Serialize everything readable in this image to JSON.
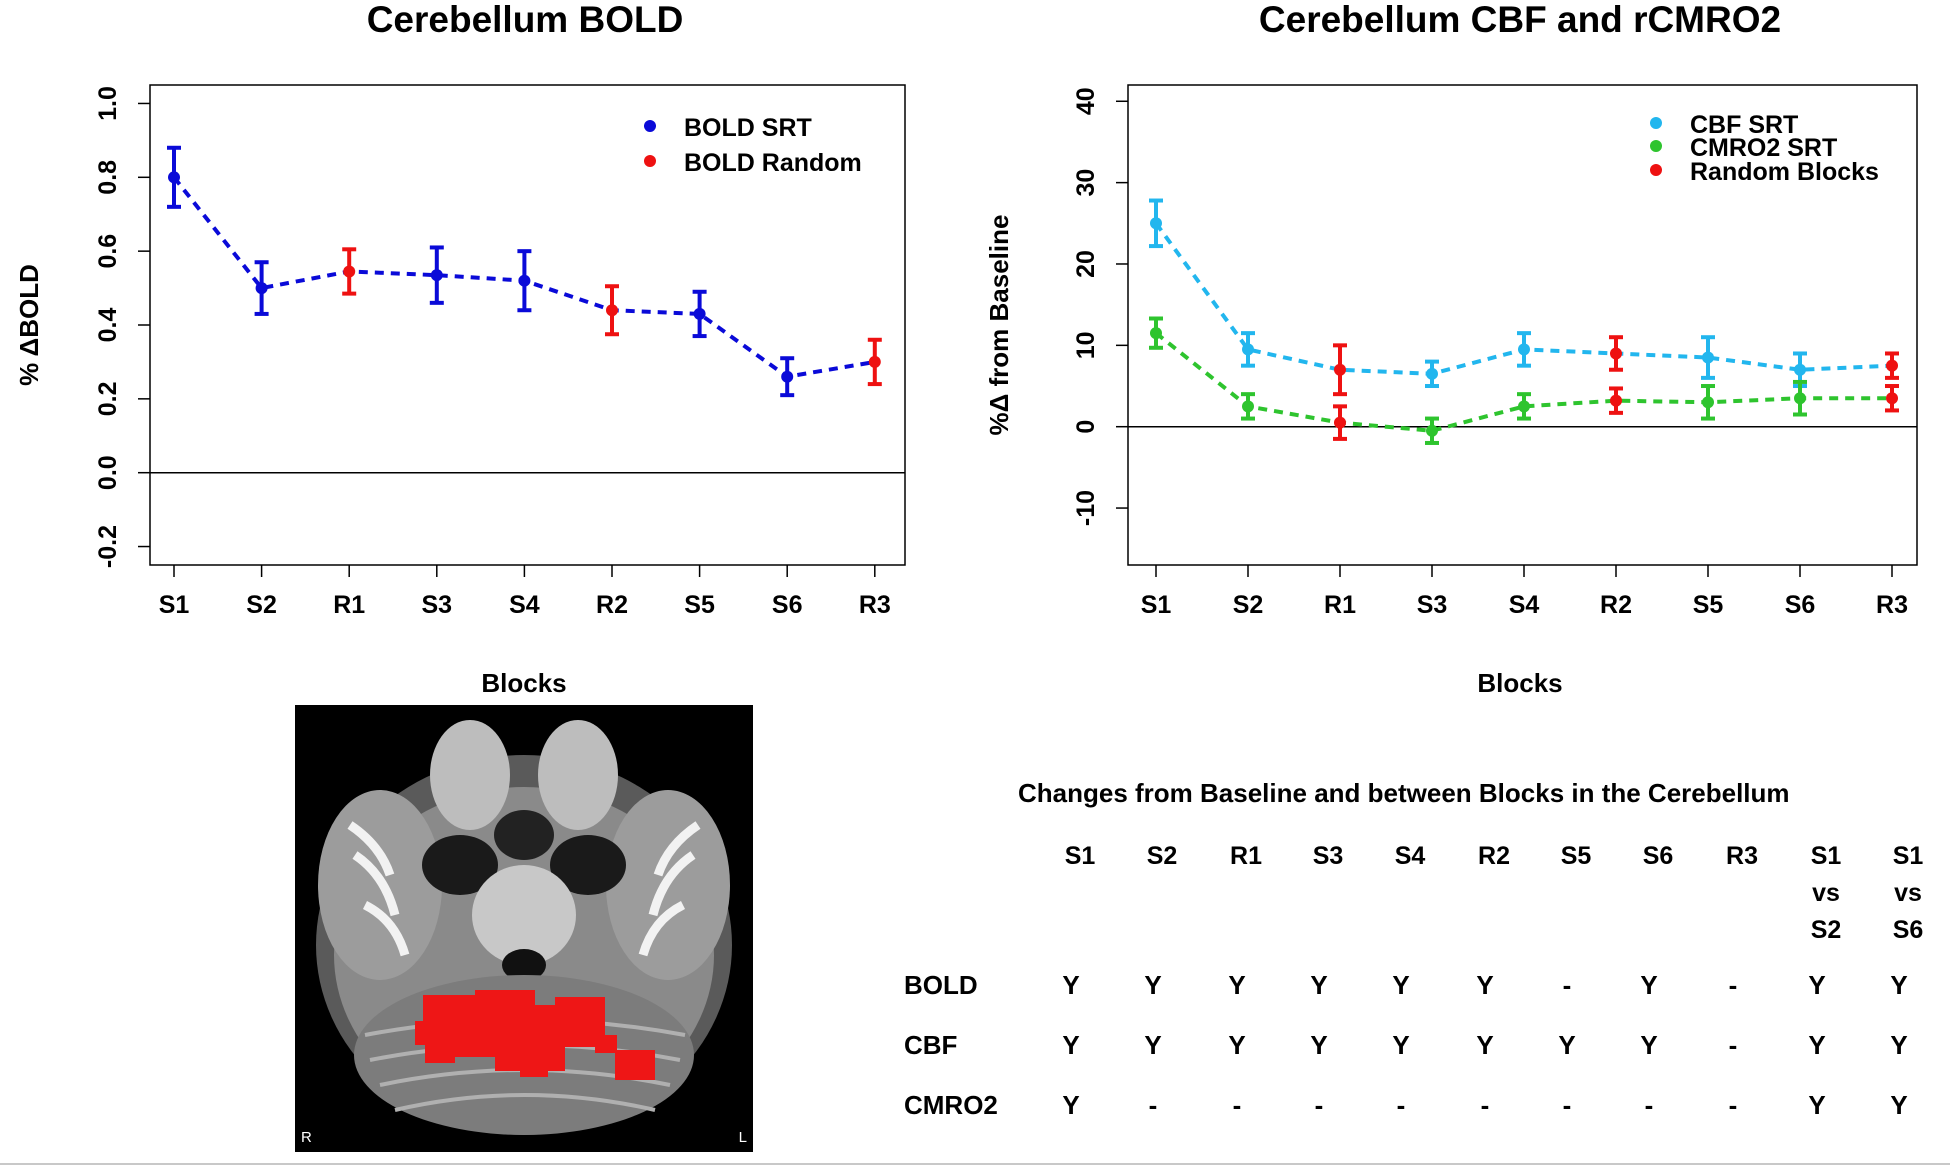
{
  "chart_data": [
    {
      "type": "line",
      "title": "Cerebellum BOLD",
      "xlabel": "Blocks",
      "ylabel": "%  ΔBOLD",
      "categories": [
        "S1",
        "S2",
        "R1",
        "S3",
        "S4",
        "R2",
        "S5",
        "S6",
        "R3"
      ],
      "ylim": [
        -0.25,
        1.05
      ],
      "yticks": [
        "-0.2",
        "0.0",
        "0.2",
        "0.4",
        "0.6",
        "0.8",
        "1.0"
      ],
      "legend": {
        "position": "top-right",
        "entries": [
          {
            "name": "BOLD SRT",
            "color": "#0a0ad8"
          },
          {
            "name": "BOLD Random",
            "color": "#ee1111"
          }
        ]
      },
      "series": [
        {
          "name": "BOLD SRT / BOLD Random",
          "values": [
            0.8,
            0.5,
            0.545,
            0.535,
            0.52,
            0.44,
            0.43,
            0.26,
            0.3
          ],
          "errors": [
            0.08,
            0.07,
            0.06,
            0.075,
            0.08,
            0.065,
            0.06,
            0.05,
            0.06
          ],
          "colors": [
            "#0a0ad8",
            "#0a0ad8",
            "#ee1111",
            "#0a0ad8",
            "#0a0ad8",
            "#ee1111",
            "#0a0ad8",
            "#0a0ad8",
            "#ee1111"
          ],
          "line_color": "#0a0ad8"
        }
      ]
    },
    {
      "type": "line",
      "title": "Cerebellum CBF and rCMRO2",
      "xlabel": "Blocks",
      "ylabel": "%Δ from Baseline",
      "categories": [
        "S1",
        "S2",
        "R1",
        "S3",
        "S4",
        "R2",
        "S5",
        "S6",
        "R3"
      ],
      "ylim": [
        -17,
        42
      ],
      "yticks": [
        "-10",
        "0",
        "10",
        "20",
        "30",
        "40"
      ],
      "legend": {
        "position": "top-right",
        "entries": [
          {
            "name": "CBF SRT",
            "color": "#22b6ee"
          },
          {
            "name": "CMRO2 SRT",
            "color": "#2ec42e"
          },
          {
            "name": "Random Blocks",
            "color": "#ee1111"
          }
        ]
      },
      "series": [
        {
          "name": "CBF",
          "values": [
            25,
            9.5,
            7,
            6.5,
            9.5,
            9,
            8.5,
            7,
            7.5
          ],
          "errors": [
            2.8,
            2.0,
            3.0,
            1.5,
            2.0,
            2.0,
            2.5,
            2.0,
            1.5
          ],
          "colors": [
            "#22b6ee",
            "#22b6ee",
            "#ee1111",
            "#22b6ee",
            "#22b6ee",
            "#ee1111",
            "#22b6ee",
            "#22b6ee",
            "#ee1111"
          ],
          "line_color": "#22b6ee"
        },
        {
          "name": "CMRO2",
          "values": [
            11.5,
            2.5,
            0.5,
            -0.5,
            2.5,
            3.2,
            3,
            3.5,
            3.5
          ],
          "errors": [
            1.8,
            1.5,
            2.0,
            1.5,
            1.5,
            1.5,
            2.0,
            2.0,
            1.5
          ],
          "colors": [
            "#2ec42e",
            "#2ec42e",
            "#ee1111",
            "#2ec42e",
            "#2ec42e",
            "#ee1111",
            "#2ec42e",
            "#2ec42e",
            "#ee1111"
          ],
          "line_color": "#2ec42e"
        }
      ]
    }
  ],
  "brain": {
    "left_marker": "R",
    "right_marker": "L"
  },
  "table": {
    "title": "Changes from Baseline and between Blocks in the Cerebellum",
    "columns": [
      [
        "S1"
      ],
      [
        "S2"
      ],
      [
        "R1"
      ],
      [
        "S3"
      ],
      [
        "S4"
      ],
      [
        "R2"
      ],
      [
        "S5"
      ],
      [
        "S6"
      ],
      [
        "R3"
      ],
      [
        "S1",
        "vs",
        "S2"
      ],
      [
        "S1",
        "vs",
        "S6"
      ]
    ],
    "rows": [
      {
        "label": "BOLD",
        "cells": [
          "Y",
          "Y",
          "Y",
          "Y",
          "Y",
          "Y",
          "-",
          "Y",
          "-",
          "Y",
          "Y"
        ]
      },
      {
        "label": "CBF",
        "cells": [
          "Y",
          "Y",
          "Y",
          "Y",
          "Y",
          "Y",
          "Y",
          "Y",
          "-",
          "Y",
          "Y"
        ]
      },
      {
        "label": "CMRO2",
        "cells": [
          "Y",
          "-",
          "-",
          "-",
          "-",
          "-",
          "-",
          "-",
          "-",
          "Y",
          "Y"
        ]
      }
    ]
  }
}
